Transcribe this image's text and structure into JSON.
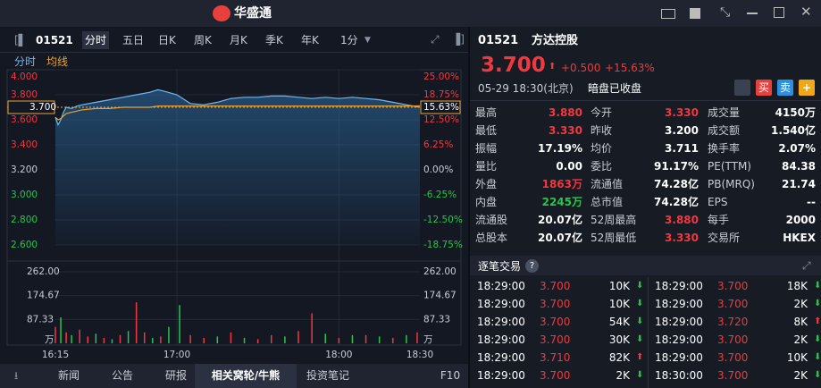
{
  "app": {
    "logo": "华盛通"
  },
  "toolbar": {
    "code": "01521",
    "tabs": [
      "分时",
      "五日",
      "日K",
      "周K",
      "月K",
      "季K",
      "年K"
    ],
    "interval": "1分"
  },
  "bottom_tabs": [
    "新闻",
    "公告",
    "研报",
    "相关窝轮/牛熊",
    "投资笔记",
    "F10"
  ],
  "chart_data": {
    "type": "line",
    "x": [
      0,
      1,
      2,
      3,
      4,
      6,
      8,
      10,
      15,
      20,
      25,
      30,
      35,
      38,
      40,
      45,
      50,
      55,
      60,
      65,
      70,
      75,
      80,
      85,
      90,
      95,
      100,
      105,
      110,
      115,
      120,
      125,
      130,
      135
    ],
    "xlim": [
      0,
      135
    ],
    "xticks": [
      {
        "value": 0,
        "label": "16:15"
      },
      {
        "value": 45,
        "label": "17:00"
      },
      {
        "value": 105,
        "label": "18:00"
      },
      {
        "value": 135,
        "label": "18:30"
      }
    ],
    "series": [
      {
        "name": "分时",
        "color": "#6fb8ee",
        "values": [
          3.62,
          3.56,
          3.6,
          3.66,
          3.7,
          3.69,
          3.71,
          3.72,
          3.74,
          3.76,
          3.78,
          3.8,
          3.82,
          3.84,
          3.83,
          3.8,
          3.73,
          3.72,
          3.74,
          3.77,
          3.78,
          3.78,
          3.79,
          3.79,
          3.78,
          3.77,
          3.78,
          3.77,
          3.78,
          3.77,
          3.76,
          3.74,
          3.72,
          3.7
        ]
      },
      {
        "name": "均线",
        "color": "#e8a33a",
        "values": [
          3.62,
          3.6,
          3.61,
          3.63,
          3.65,
          3.66,
          3.67,
          3.68,
          3.69,
          3.69,
          3.7,
          3.7,
          3.7,
          3.71,
          3.71,
          3.71,
          3.71,
          3.71,
          3.71,
          3.71,
          3.71,
          3.71,
          3.71,
          3.71,
          3.71,
          3.71,
          3.71,
          3.71,
          3.71,
          3.71,
          3.71,
          3.71,
          3.71,
          3.711
        ]
      }
    ],
    "ylim": [
      2.6,
      4.0
    ],
    "yticks": [
      {
        "value": 4.0,
        "label": "4.000"
      },
      {
        "value": 3.8,
        "label": "3.800"
      },
      {
        "value": 3.6,
        "label": "3.600"
      },
      {
        "value": 3.4,
        "label": "3.400"
      },
      {
        "value": 3.2,
        "label": "3.200"
      },
      {
        "value": 3.0,
        "label": "3.000"
      },
      {
        "value": 2.8,
        "label": "2.800"
      },
      {
        "value": 2.6,
        "label": "2.600"
      }
    ],
    "y2lim": [
      -18.75,
      25
    ],
    "y2ticks": [
      {
        "value": 25,
        "label": "25.00%"
      },
      {
        "value": 18.75,
        "label": "18.75%"
      },
      {
        "value": 12.5,
        "label": "12.50%"
      },
      {
        "value": 6.25,
        "label": "6.25%"
      },
      {
        "value": 0,
        "label": "0.00%"
      },
      {
        "value": -6.25,
        "label": "-6.25%"
      },
      {
        "value": -12.5,
        "label": "-12.50%"
      },
      {
        "value": -18.75,
        "label": "-18.75%"
      }
    ],
    "volume": {
      "unit": "万",
      "x": [
        0,
        2,
        4,
        6,
        9,
        12,
        15,
        18,
        21,
        24,
        27,
        30,
        33,
        36,
        39,
        42,
        46,
        50,
        55,
        60,
        65,
        70,
        75,
        80,
        85,
        90,
        95,
        100,
        105,
        110,
        115,
        120,
        125,
        130,
        134
      ],
      "values": [
        60,
        95,
        40,
        30,
        50,
        25,
        35,
        20,
        15,
        30,
        45,
        150,
        40,
        20,
        25,
        60,
        140,
        30,
        20,
        25,
        40,
        20,
        15,
        30,
        25,
        45,
        110,
        35,
        20,
        30,
        30,
        25,
        20,
        30,
        40
      ],
      "colors": [
        "#f0393f",
        "#2bc44d",
        "#f0393f",
        "#2bc44d",
        "#f0393f",
        "#f0393f",
        "#2bc44d",
        "#f0393f",
        "#2bc44d",
        "#f0393f",
        "#2bc44d",
        "#f0393f",
        "#f0393f",
        "#2bc44d",
        "#f0393f",
        "#2bc44d",
        "#2bc44d",
        "#f0393f",
        "#f0393f",
        "#2bc44d",
        "#f0393f",
        "#2bc44d",
        "#f0393f",
        "#f0393f",
        "#2bc44d",
        "#f0393f",
        "#f0393f",
        "#2bc44d",
        "#f0393f",
        "#2bc44d",
        "#f0393f",
        "#2bc44d",
        "#f0393f",
        "#2bc44d",
        "#f0393f"
      ],
      "ylim": [
        0,
        262
      ],
      "yticks": [
        {
          "value": 262,
          "label": "262.00"
        },
        174.67,
        87.33
      ]
    }
  },
  "quote": {
    "code": "01521",
    "name": "方达控股",
    "price": "3.700",
    "change": "+0.500",
    "change_pct": "+15.63%",
    "axis_pct": "15.63%",
    "time": "05-29 18:30(北京)",
    "status": "暗盘已收盘",
    "buy": "买",
    "sell": "卖",
    "stats": [
      [
        {
          "label": "最高",
          "value": "3.880",
          "color": "#f0393f"
        },
        {
          "label": "今开",
          "value": "3.330",
          "color": "#f0393f"
        },
        {
          "label": "成交量",
          "value": "4150万",
          "color": "#ffffff"
        }
      ],
      [
        {
          "label": "最低",
          "value": "3.330",
          "color": "#f0393f"
        },
        {
          "label": "昨收",
          "value": "3.200",
          "color": "#ffffff"
        },
        {
          "label": "成交额",
          "value": "1.540亿",
          "color": "#ffffff"
        }
      ],
      [
        {
          "label": "振幅",
          "value": "17.19%",
          "color": "#ffffff"
        },
        {
          "label": "均价",
          "value": "3.711",
          "color": "#ffffff"
        },
        {
          "label": "换手率",
          "value": "2.07%",
          "color": "#ffffff"
        }
      ],
      [
        {
          "label": "量比",
          "value": "0.00",
          "color": "#ffffff"
        },
        {
          "label": "委比",
          "value": "91.17%",
          "color": "#ffffff"
        },
        {
          "label": "PE(TTM)",
          "value": "84.38",
          "color": "#ffffff"
        }
      ],
      [
        {
          "label": "外盘",
          "value": "1863万",
          "color": "#f0393f"
        },
        {
          "label": "流通值",
          "value": "74.28亿",
          "color": "#ffffff"
        },
        {
          "label": "PB(MRQ)",
          "value": "21.74",
          "color": "#ffffff"
        }
      ],
      [
        {
          "label": "内盘",
          "value": "2245万",
          "color": "#2bc44d"
        },
        {
          "label": "总市值",
          "value": "74.28亿",
          "color": "#ffffff"
        },
        {
          "label": "EPS",
          "value": "--",
          "color": "#ffffff"
        }
      ],
      [
        {
          "label": "流通股",
          "value": "20.07亿",
          "color": "#ffffff"
        },
        {
          "label": "52周最高",
          "value": "3.880",
          "color": "#f0393f"
        },
        {
          "label": "每手",
          "value": "2000",
          "color": "#ffffff"
        }
      ],
      [
        {
          "label": "总股本",
          "value": "20.07亿",
          "color": "#ffffff"
        },
        {
          "label": "52周最低",
          "value": "3.330",
          "color": "#f0393f"
        },
        {
          "label": "交易所",
          "value": "HKEX",
          "color": "#ffffff"
        }
      ]
    ]
  },
  "trades": {
    "title": "逐笔交易",
    "help": "?",
    "columns": [
      [
        {
          "time": "18:29:00",
          "price": "3.700",
          "volume": "10K",
          "dir": "down"
        },
        {
          "time": "18:29:00",
          "price": "3.700",
          "volume": "10K",
          "dir": "down"
        },
        {
          "time": "18:29:00",
          "price": "3.700",
          "volume": "54K",
          "dir": "down"
        },
        {
          "time": "18:29:00",
          "price": "3.700",
          "volume": "30K",
          "dir": "down"
        },
        {
          "time": "18:29:00",
          "price": "3.710",
          "volume": "82K",
          "dir": "up"
        },
        {
          "time": "18:29:00",
          "price": "3.700",
          "volume": "2K",
          "dir": "down"
        }
      ],
      [
        {
          "time": "18:29:00",
          "price": "3.700",
          "volume": "18K",
          "dir": "down"
        },
        {
          "time": "18:29:00",
          "price": "3.700",
          "volume": "2K",
          "dir": "down"
        },
        {
          "time": "18:29:00",
          "price": "3.720",
          "volume": "8K",
          "dir": "up"
        },
        {
          "time": "18:29:00",
          "price": "3.700",
          "volume": "2K",
          "dir": "down"
        },
        {
          "time": "18:29:00",
          "price": "3.700",
          "volume": "10K",
          "dir": "down"
        },
        {
          "time": "18:30:00",
          "price": "3.700",
          "volume": "2K",
          "dir": "down"
        }
      ]
    ]
  }
}
